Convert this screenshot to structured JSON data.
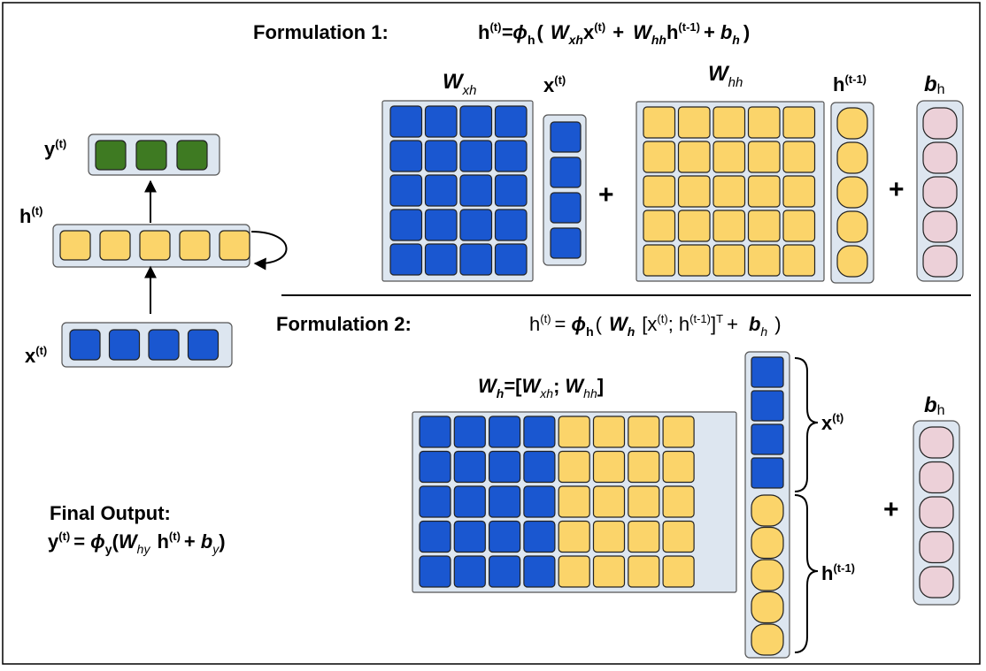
{
  "colors": {
    "blue": "#1a57d0",
    "yellow": "#fbd46a",
    "green": "#3e7a22",
    "pink": "#ecd0d8",
    "panel": "#dde6f0"
  },
  "formulation1": {
    "heading": "Formulation 1:",
    "eq": {
      "h": "h",
      "t_sup": "(t)",
      "eq_phi": "=ϕ",
      "phi_sub": "h",
      "open": "(",
      "W1": "W",
      "W1_sub": "xh",
      "x": "x",
      "x_sup": "(t)",
      "plus1": "+",
      "W2": "W",
      "W2_sub": "hh",
      "h2": "h",
      "h2_sup": "(t-1)",
      "plus2": "+",
      "b": "b",
      "b_sub": "h",
      "close": ")"
    },
    "labels": {
      "W_xh": "W",
      "W_xh_sub": "xh",
      "x": "x",
      "x_sup": "(t)",
      "W_hh": "W",
      "W_hh_sub": "hh",
      "h_prev": "h",
      "h_prev_sup": "(t-1)",
      "b": "b",
      "b_sub": "h"
    },
    "plus": "+"
  },
  "formulation2": {
    "heading": "Formulation 2:",
    "eq": {
      "h": "h",
      "t_sup": "(t)",
      "eq": "=",
      "phi": "ϕ",
      "phi_sub": "h",
      "open": "(",
      "W": "W",
      "W_sub": "h",
      "br_open": "[x",
      "x_sup": "(t)",
      "semi": "; h",
      "h_sup": "(t-1)",
      "br_close": "]",
      "T_sup": "T",
      "plus": "+",
      "b": "b",
      "b_sub": "h",
      "close": ")"
    },
    "matrix_label": {
      "W": "W",
      "W_sub": "h",
      "eq_open": "=[",
      "W1": "W",
      "W1_sub": "xh",
      "semi": ";",
      "W2": "W",
      "W2_sub": "hh",
      "close": "]"
    },
    "brace_x": "x",
    "brace_x_sup": "(t)",
    "brace_h": "h",
    "brace_h_sup": "(t-1)",
    "b": "b",
    "b_sub": "h",
    "plus": "+"
  },
  "rnn": {
    "y": "y",
    "y_sup": "(t)",
    "h": "h",
    "h_sup": "(t)",
    "x": "x",
    "x_sup": "(t)"
  },
  "final_output": {
    "title": "Final Output:",
    "y": "y",
    "y_sup": "(t)",
    "eq": "=",
    "phi": "ϕ",
    "phi_sub": "y",
    "open": "(",
    "W": "W",
    "W_sub": "hy",
    "h": "h",
    "h_sup": "(t)",
    "plus": "+",
    "b": "b",
    "b_sub": "y",
    "close": ")"
  }
}
